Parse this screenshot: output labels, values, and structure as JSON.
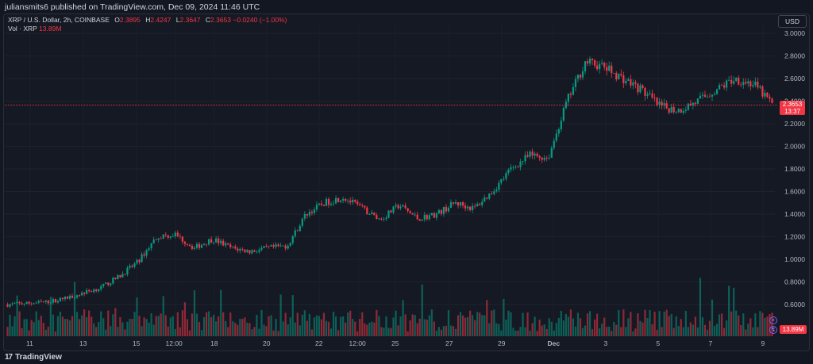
{
  "header": {
    "publisher_text": "juliansmits6 published on TradingView.com, Dec 09, 2024 11:46 UTC"
  },
  "legend": {
    "symbol": "XRP / U.S. Dollar, 2h, COINBASE",
    "open_label": "O",
    "open_value": "2.3895",
    "high_label": "H",
    "high_value": "2.4247",
    "low_label": "L",
    "low_value": "2.3647",
    "close_label": "C",
    "close_value": "2.3653",
    "change_value": "−0.0240 (−1.00%)",
    "volume_label": "Vol · XRP",
    "volume_value": "13.89M"
  },
  "currency_button": "USD",
  "last_price": {
    "price": "2.3653",
    "countdown": "13:37"
  },
  "volume_badge": "13.89M",
  "footer": {
    "brand": "TradingView"
  },
  "colors": {
    "background": "#131722",
    "up": "#089981",
    "down": "#f23645",
    "text": "#d1d4dc"
  },
  "chart_data": {
    "type": "candlestick",
    "title": "XRP / U.S. Dollar, 2h, COINBASE",
    "y_ticks": [
      "3.0000",
      "2.8000",
      "2.6000",
      "2.4000",
      "2.2000",
      "2.0000",
      "1.8000",
      "1.6000",
      "1.4000",
      "1.2000",
      "1.0000",
      "0.8000",
      "0.6000"
    ],
    "x_ticks": [
      "11",
      "13",
      "15",
      "12:00",
      "18",
      "20",
      "22",
      "12:00",
      "25",
      "27",
      "29",
      "Dec",
      "3",
      "5",
      "7",
      "9"
    ],
    "ylim": [
      0.5,
      3.05
    ],
    "close_path": [
      [
        0.57,
        0.6
      ],
      [
        0.59,
        0.61
      ],
      [
        0.6,
        0.62
      ],
      [
        0.62,
        0.65
      ],
      [
        0.66,
        0.7
      ],
      [
        0.71,
        0.75
      ],
      [
        0.8,
        0.85
      ],
      [
        0.9,
        0.98
      ],
      [
        1.05,
        1.2
      ],
      [
        1.28,
        1.22
      ],
      [
        1.12,
        1.1
      ],
      [
        1.15,
        1.18
      ],
      [
        1.13,
        1.1
      ],
      [
        1.08,
        1.07
      ],
      [
        1.08,
        1.1
      ],
      [
        1.1,
        1.12
      ],
      [
        1.25,
        1.4
      ],
      [
        1.45,
        1.5
      ],
      [
        1.6,
        1.55
      ],
      [
        1.5,
        1.45
      ],
      [
        1.4,
        1.35
      ],
      [
        1.45,
        1.48
      ],
      [
        1.42,
        1.36
      ],
      [
        1.34,
        1.4
      ],
      [
        1.45,
        1.5
      ],
      [
        1.48,
        1.45
      ],
      [
        1.5,
        1.6
      ],
      [
        1.7,
        1.8
      ],
      [
        1.85,
        1.92
      ],
      [
        1.88,
        1.9
      ],
      [
        2.0,
        2.4
      ],
      [
        2.55,
        2.75
      ],
      [
        2.8,
        2.7
      ],
      [
        2.55,
        2.6
      ],
      [
        2.62,
        2.5
      ],
      [
        2.4,
        2.35
      ],
      [
        2.3,
        2.32
      ],
      [
        2.35,
        2.4
      ],
      [
        2.45,
        2.5
      ],
      [
        2.55,
        2.6
      ],
      [
        2.58,
        2.55
      ],
      [
        2.52,
        2.38
      ]
    ],
    "volume_ylim": [
      0,
      1
    ],
    "last_close": 2.3653
  }
}
